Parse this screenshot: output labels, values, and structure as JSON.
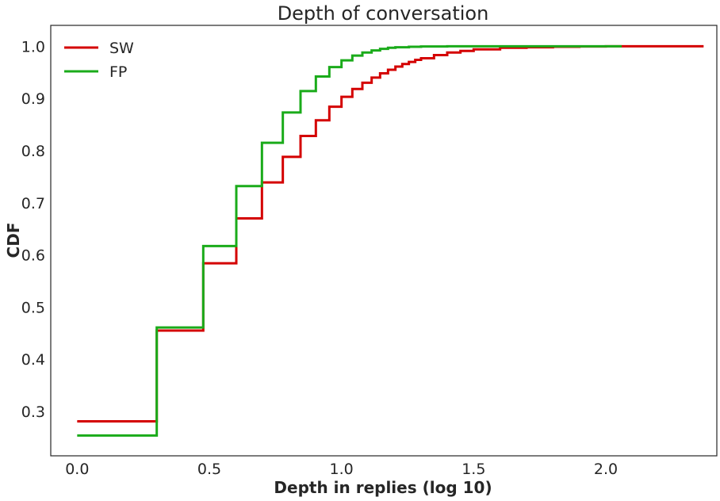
{
  "chart_data": {
    "type": "line",
    "title": "Depth of conversation",
    "xlabel": "Depth in replies (log 10)",
    "ylabel": "CDF",
    "xlim": [
      -0.1,
      2.42
    ],
    "ylim": [
      0.215,
      1.04
    ],
    "grid": false,
    "legend_position": "top-left",
    "x_ticks": [
      {
        "value": 0.0,
        "label": "0.0"
      },
      {
        "value": 0.5,
        "label": "0.5"
      },
      {
        "value": 1.0,
        "label": "1.0"
      },
      {
        "value": 1.5,
        "label": "1.5"
      },
      {
        "value": 2.0,
        "label": "2.0"
      }
    ],
    "y_ticks": [
      {
        "value": 0.3,
        "label": "0.3"
      },
      {
        "value": 0.4,
        "label": "0.4"
      },
      {
        "value": 0.5,
        "label": "0.5"
      },
      {
        "value": 0.6,
        "label": "0.6"
      },
      {
        "value": 0.7,
        "label": "0.7"
      },
      {
        "value": 0.8,
        "label": "0.8"
      },
      {
        "value": 0.9,
        "label": "0.9"
      },
      {
        "value": 1.0,
        "label": "1.0"
      }
    ],
    "series": [
      {
        "name": "SW",
        "color": "#d40000",
        "points": [
          [
            0.0,
            0.281
          ],
          [
            0.301,
            0.455
          ],
          [
            0.477,
            0.584
          ],
          [
            0.602,
            0.67
          ],
          [
            0.699,
            0.739
          ],
          [
            0.778,
            0.788
          ],
          [
            0.845,
            0.828
          ],
          [
            0.903,
            0.858
          ],
          [
            0.954,
            0.884
          ],
          [
            1.0,
            0.903
          ],
          [
            1.041,
            0.918
          ],
          [
            1.079,
            0.93
          ],
          [
            1.114,
            0.94
          ],
          [
            1.146,
            0.948
          ],
          [
            1.176,
            0.955
          ],
          [
            1.204,
            0.961
          ],
          [
            1.23,
            0.966
          ],
          [
            1.255,
            0.97
          ],
          [
            1.279,
            0.974
          ],
          [
            1.301,
            0.977
          ],
          [
            1.35,
            0.983
          ],
          [
            1.4,
            0.988
          ],
          [
            1.45,
            0.991
          ],
          [
            1.5,
            0.994
          ],
          [
            1.6,
            0.997
          ],
          [
            1.7,
            0.998
          ],
          [
            1.8,
            0.999
          ],
          [
            1.9,
            0.9995
          ],
          [
            2.0,
            1.0
          ],
          [
            2.37,
            1.0
          ]
        ]
      },
      {
        "name": "FP",
        "color": "#1aab1a",
        "points": [
          [
            0.0,
            0.254
          ],
          [
            0.301,
            0.461
          ],
          [
            0.477,
            0.617
          ],
          [
            0.602,
            0.732
          ],
          [
            0.699,
            0.815
          ],
          [
            0.778,
            0.873
          ],
          [
            0.845,
            0.914
          ],
          [
            0.903,
            0.942
          ],
          [
            0.954,
            0.96
          ],
          [
            1.0,
            0.973
          ],
          [
            1.041,
            0.982
          ],
          [
            1.079,
            0.988
          ],
          [
            1.114,
            0.992
          ],
          [
            1.146,
            0.995
          ],
          [
            1.176,
            0.997
          ],
          [
            1.204,
            0.998
          ],
          [
            1.255,
            0.999
          ],
          [
            1.301,
            0.9995
          ],
          [
            1.4,
            1.0
          ],
          [
            2.06,
            1.0
          ]
        ]
      }
    ]
  }
}
